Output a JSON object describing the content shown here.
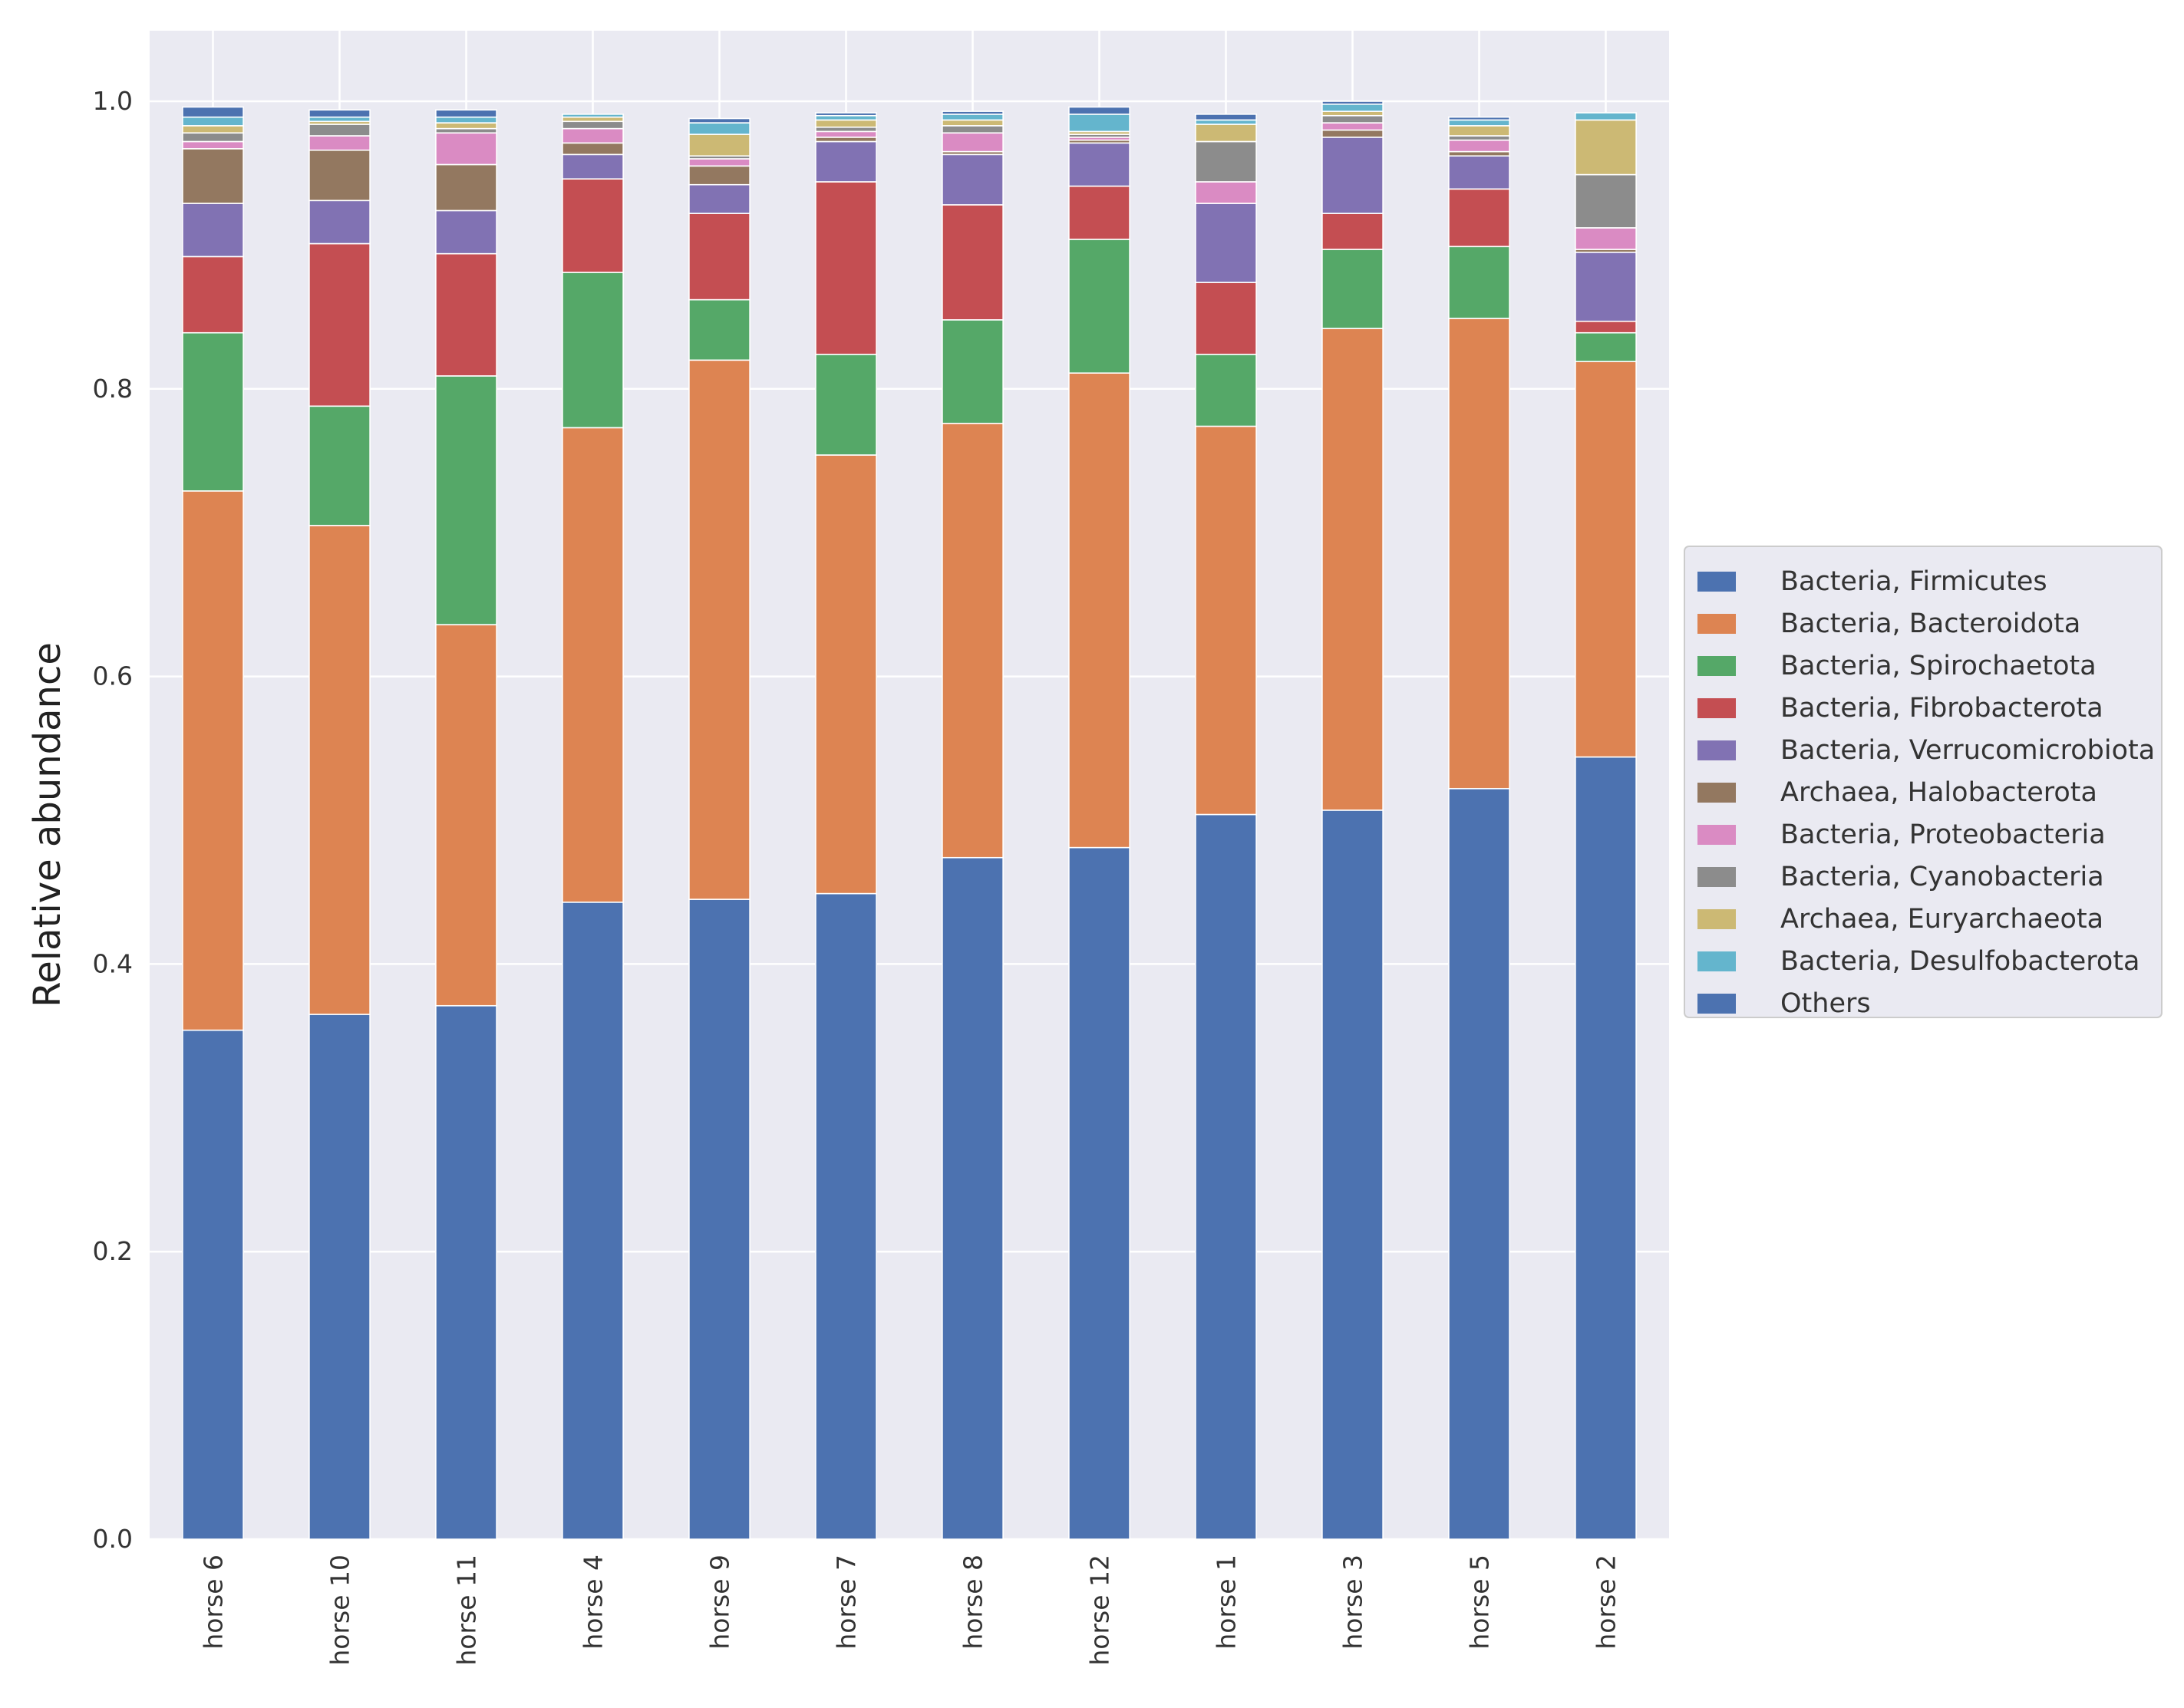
{
  "chart_data": {
    "type": "bar",
    "stacked": true,
    "title": "",
    "xlabel": "",
    "ylabel": "Relative abundance",
    "ylim": [
      0,
      1.05
    ],
    "yticks": [
      0.0,
      0.2,
      0.4,
      0.6,
      0.8,
      1.0
    ],
    "ytick_labels": [
      "0.0",
      "0.2",
      "0.4",
      "0.6",
      "0.8",
      "1.0"
    ],
    "grid": true,
    "legend_position": "right",
    "categories": [
      "horse 6",
      "horse 10",
      "horse 11",
      "horse 4",
      "horse 9",
      "horse 7",
      "horse 8",
      "horse 12",
      "horse 1",
      "horse 3",
      "horse 5",
      "horse 2"
    ],
    "stack_order": [
      "Others",
      "Bacteria, Bacteroidota",
      "Bacteria, Spirochaetota",
      "Bacteria, Fibrobacterota",
      "Bacteria, Verrucomicrobiota",
      "Archaea, Halobacterota",
      "Bacteria, Proteobacteria",
      "Bacteria, Cyanobacteria",
      "Archaea, Euryarchaeota",
      "Bacteria, Desulfobacterota",
      "Bacteria, Firmicutes"
    ],
    "series": [
      {
        "name": "Bacteria, Firmicutes",
        "color": "#4c72b0",
        "values": [
          0.007,
          0.005,
          0.005,
          0.0,
          0.003,
          0.002,
          0.002,
          0.005,
          0.004,
          0.002,
          0.002,
          0.0
        ]
      },
      {
        "name": "Bacteria, Bacteroidota",
        "color": "#dd8452",
        "values": [
          0.375,
          0.34,
          0.265,
          0.33,
          0.375,
          0.305,
          0.302,
          0.33,
          0.27,
          0.335,
          0.327,
          0.275
        ]
      },
      {
        "name": "Bacteria, Spirochaetota",
        "color": "#55a868",
        "values": [
          0.11,
          0.083,
          0.173,
          0.108,
          0.042,
          0.07,
          0.072,
          0.093,
          0.05,
          0.055,
          0.05,
          0.02
        ]
      },
      {
        "name": "Bacteria, Fibrobacterota",
        "color": "#c44e52",
        "values": [
          0.053,
          0.113,
          0.085,
          0.065,
          0.06,
          0.12,
          0.08,
          0.037,
          0.05,
          0.025,
          0.04,
          0.008
        ]
      },
      {
        "name": "Bacteria, Verrucomicrobiota",
        "color": "#8172b3",
        "values": [
          0.037,
          0.03,
          0.03,
          0.017,
          0.02,
          0.028,
          0.035,
          0.03,
          0.055,
          0.053,
          0.023,
          0.048
        ]
      },
      {
        "name": "Archaea, Halobacterota",
        "color": "#937860",
        "values": [
          0.038,
          0.035,
          0.032,
          0.008,
          0.013,
          0.003,
          0.002,
          0.002,
          0.0,
          0.005,
          0.003,
          0.002
        ]
      },
      {
        "name": "Bacteria, Proteobacteria",
        "color": "#da8bc3",
        "values": [
          0.005,
          0.01,
          0.022,
          0.01,
          0.005,
          0.004,
          0.013,
          0.002,
          0.015,
          0.005,
          0.008,
          0.015
        ]
      },
      {
        "name": "Bacteria, Cyanobacteria",
        "color": "#8c8c8c",
        "values": [
          0.006,
          0.008,
          0.003,
          0.005,
          0.002,
          0.003,
          0.005,
          0.002,
          0.028,
          0.005,
          0.003,
          0.037
        ]
      },
      {
        "name": "Archaea, Euryarchaeota",
        "color": "#ccb974",
        "values": [
          0.005,
          0.002,
          0.004,
          0.003,
          0.015,
          0.005,
          0.004,
          0.002,
          0.012,
          0.003,
          0.007,
          0.038
        ]
      },
      {
        "name": "Bacteria, Desulfobacterota",
        "color": "#64b5cd",
        "values": [
          0.006,
          0.003,
          0.004,
          0.002,
          0.008,
          0.003,
          0.004,
          0.012,
          0.003,
          0.005,
          0.004,
          0.005
        ]
      },
      {
        "name": "Others",
        "color": "#4c72b0",
        "values": [
          0.354,
          0.365,
          0.371,
          0.443,
          0.445,
          0.449,
          0.474,
          0.481,
          0.504,
          0.507,
          0.522,
          0.544
        ]
      }
    ],
    "legend": [
      "Bacteria, Firmicutes",
      "Bacteria, Bacteroidota",
      "Bacteria, Spirochaetota",
      "Bacteria, Fibrobacterota",
      "Bacteria, Verrucomicrobiota",
      "Archaea, Halobacterota",
      "Bacteria, Proteobacteria",
      "Bacteria, Cyanobacteria",
      "Archaea, Euryarchaeota",
      "Bacteria, Desulfobacterota",
      "Others"
    ]
  }
}
